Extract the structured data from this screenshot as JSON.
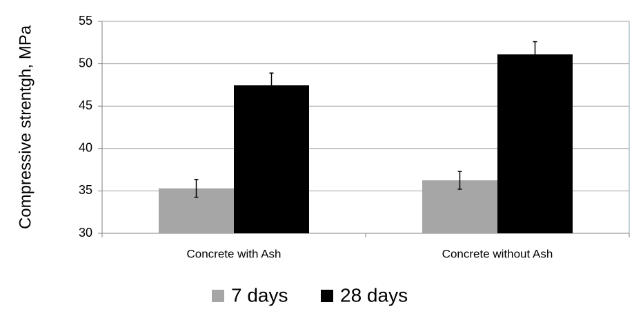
{
  "chart_data": {
    "type": "bar",
    "y_label": "Compressive strentgh, MPa",
    "categories": [
      "Concrete with Ash",
      "Concrete without Ash"
    ],
    "series": [
      {
        "name": "7 days",
        "color": "#a6a6a6",
        "values": [
          35.3,
          36.25
        ],
        "errors": [
          1.05,
          1.05
        ]
      },
      {
        "name": "28 days",
        "color": "#000000",
        "values": [
          47.45,
          51.1
        ],
        "errors": [
          1.45,
          1.5
        ]
      }
    ],
    "ylim": [
      30,
      55
    ],
    "yticks": [
      30,
      35,
      40,
      45,
      50,
      55
    ],
    "grid": true,
    "legend": "bottom"
  }
}
